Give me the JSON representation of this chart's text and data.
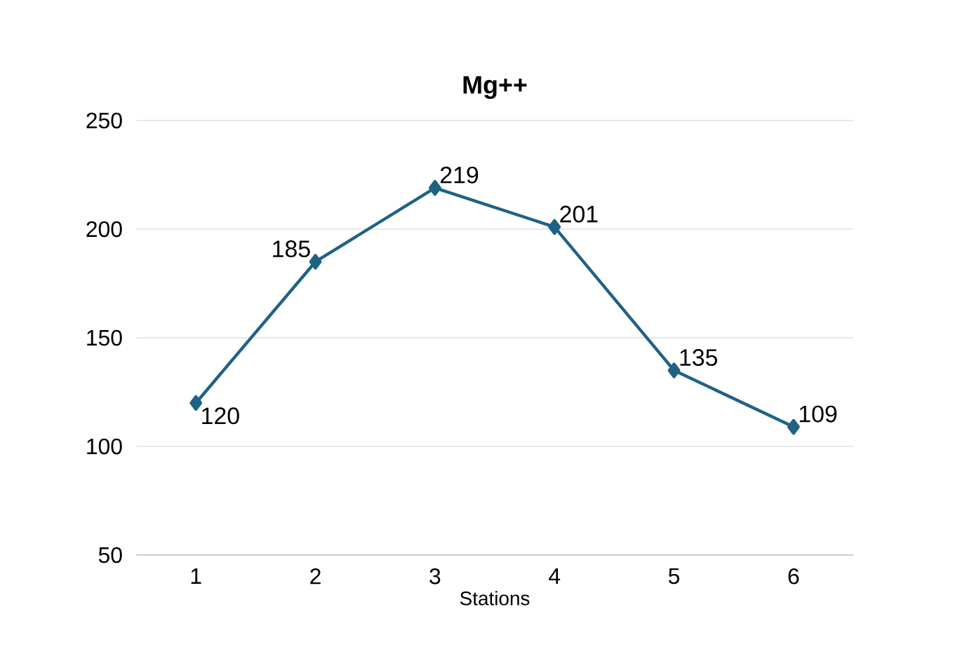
{
  "chart_data": {
    "type": "line",
    "title": "Mg++",
    "xlabel": "Stations",
    "categories": [
      "1",
      "2",
      "3",
      "4",
      "5",
      "6"
    ],
    "values": [
      120,
      185,
      219,
      201,
      135,
      109
    ],
    "color": "#1f6284",
    "ylim": [
      50,
      250
    ],
    "yticks": [
      50,
      100,
      150,
      200,
      250
    ],
    "grid": "y",
    "marker": "diamond",
    "line_style": "solid",
    "data_labels": true
  }
}
